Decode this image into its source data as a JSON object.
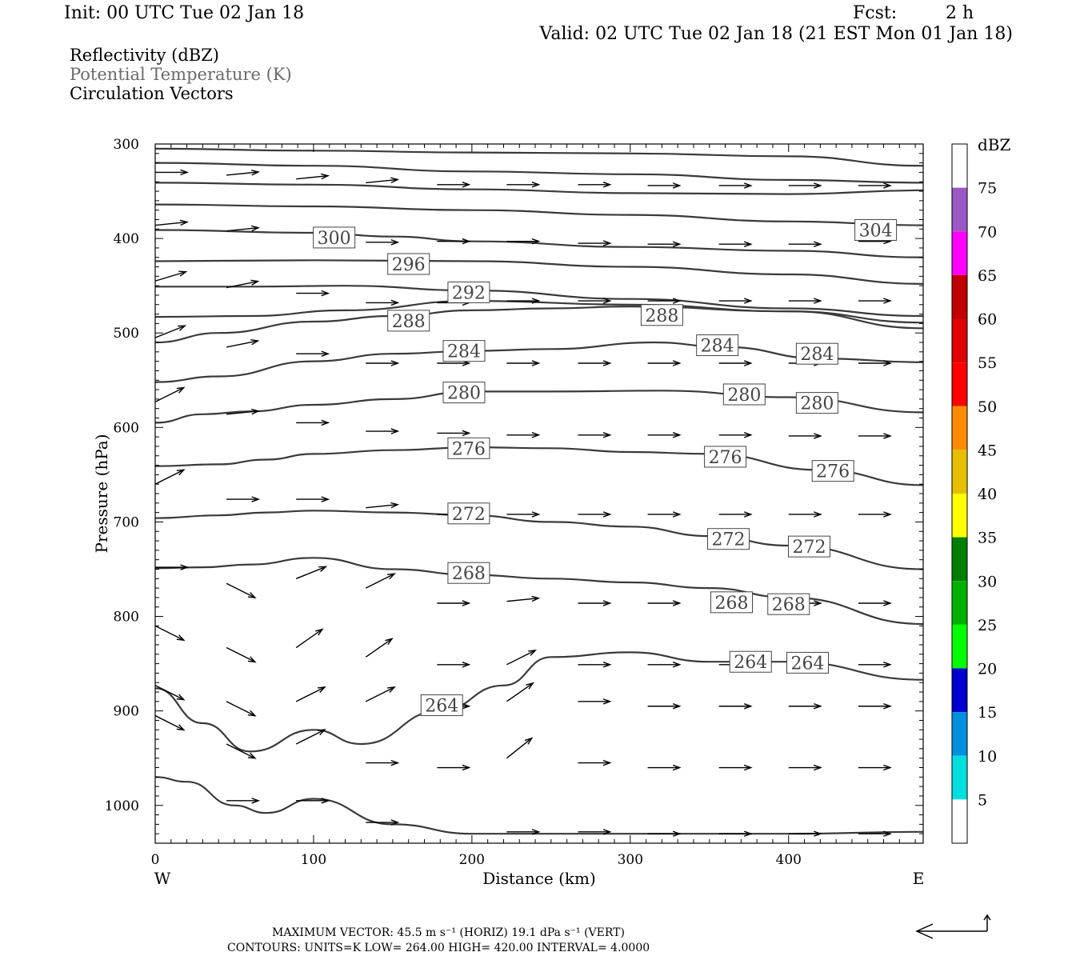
{
  "header": {
    "init": "Init: 00 UTC Tue 02 Jan 18",
    "fcst_label": "Fcst:",
    "fcst_value": "2 h",
    "valid": "Valid: 02 UTC Tue 02 Jan 18 (21 EST Mon 01 Jan 18)"
  },
  "legend": {
    "reflectivity": "Reflectivity (dBZ)",
    "theta": "Potential Temperature (K)",
    "vectors": "Circulation Vectors"
  },
  "colors": {
    "contour": "#3a3a3a",
    "theta_legend": "#6a6a6a",
    "vector": "#000000"
  },
  "chart_data": {
    "type": "line",
    "xlabel": "Distance (km)",
    "ylabel": "Pressure (hPa)",
    "xlim": [
      0,
      485
    ],
    "ylim": [
      1040,
      300
    ],
    "y_scale": "linear, inverted",
    "x_ticks": [
      "0",
      "100",
      "200",
      "300",
      "400"
    ],
    "y_ticks": [
      "300",
      "400",
      "500",
      "600",
      "700",
      "800",
      "900",
      "1000"
    ],
    "west_label": "W",
    "east_label": "E",
    "theta_contours": [
      {
        "level": "",
        "x": [
          0,
          100,
          200,
          300,
          400,
          485
        ],
        "y": [
          305,
          307,
          309,
          310,
          313,
          323
        ]
      },
      {
        "level": "",
        "x": [
          0,
          100,
          200,
          300,
          400,
          485
        ],
        "y": [
          320,
          323,
          329,
          332,
          338,
          341
        ]
      },
      {
        "level": "",
        "x": [
          0,
          100,
          200,
          300,
          400,
          485
        ],
        "y": [
          341,
          343,
          348,
          352,
          353,
          349
        ]
      },
      {
        "level": "",
        "x": [
          0,
          100,
          200,
          300,
          400,
          485
        ],
        "y": [
          364,
          366,
          370,
          375,
          382,
          386
        ]
      },
      {
        "level": "300",
        "x": [
          0,
          100,
          150,
          200,
          300,
          400,
          485
        ],
        "y": [
          391,
          394,
          398,
          403,
          409,
          413,
          420
        ]
      },
      {
        "level": "",
        "x": [
          0,
          100,
          200,
          300,
          400,
          485
        ],
        "y": [
          424,
          423,
          424,
          430,
          438,
          448
        ]
      },
      {
        "level": "296",
        "x": [
          0,
          60,
          120,
          200,
          300,
          400,
          485
        ],
        "y": [
          451,
          451,
          450,
          455,
          464,
          474,
          482
        ]
      },
      {
        "level": "292",
        "x": [
          0,
          60,
          120,
          200,
          300,
          400,
          485
        ],
        "y": [
          483,
          482,
          476,
          466,
          470,
          477,
          489
        ]
      },
      {
        "level": "288",
        "x": [
          0,
          40,
          100,
          150,
          200,
          250,
          300,
          400,
          485
        ],
        "y": [
          510,
          500,
          488,
          482,
          476,
          474,
          472,
          477,
          495
        ]
      },
      {
        "level": "284",
        "x": [
          0,
          40,
          100,
          150,
          200,
          250,
          315,
          360,
          420,
          485
        ],
        "y": [
          552,
          546,
          530,
          522,
          519,
          517,
          510,
          515,
          527,
          531
        ]
      },
      {
        "level": "280",
        "x": [
          0,
          30,
          60,
          100,
          150,
          200,
          250,
          320,
          400,
          485
        ],
        "y": [
          595,
          586,
          583,
          576,
          570,
          562,
          562,
          561,
          568,
          584
        ]
      },
      {
        "level": "276",
        "x": [
          0,
          40,
          70,
          100,
          150,
          200,
          250,
          300,
          350,
          420,
          485
        ],
        "y": [
          641,
          639,
          634,
          628,
          624,
          621,
          622,
          626,
          628,
          645,
          661
        ]
      },
      {
        "level": "272",
        "x": [
          0,
          40,
          70,
          100,
          150,
          200,
          250,
          300,
          350,
          400,
          485
        ],
        "y": [
          696,
          693,
          690,
          688,
          690,
          693,
          700,
          705,
          715,
          725,
          750
        ]
      },
      {
        "level": "268",
        "x": [
          0,
          30,
          60,
          100,
          150,
          200,
          250,
          300,
          350,
          400,
          485
        ],
        "y": [
          749,
          748,
          745,
          738,
          750,
          756,
          760,
          764,
          770,
          780,
          808
        ]
      },
      {
        "level": "264",
        "x": [
          0,
          30,
          60,
          100,
          130,
          180,
          220,
          250,
          300,
          350,
          400,
          485
        ],
        "y": [
          876,
          913,
          943,
          920,
          935,
          900,
          873,
          843,
          838,
          848,
          848,
          867
        ]
      },
      {
        "level": "",
        "x": [
          0,
          20,
          50,
          70,
          100,
          150,
          200,
          300,
          400,
          485
        ],
        "y": [
          970,
          975,
          1000,
          1008,
          993,
          1020,
          1030,
          1030,
          1030,
          1028
        ]
      }
    ],
    "contour_labels": [
      {
        "text": "304",
        "x": 455,
        "y": 391
      },
      {
        "text": "300",
        "x": 113,
        "y": 399
      },
      {
        "text": "296",
        "x": 160,
        "y": 427
      },
      {
        "text": "292",
        "x": 198,
        "y": 457
      },
      {
        "text": "288",
        "x": 160,
        "y": 487
      },
      {
        "text": "288",
        "x": 320,
        "y": 481
      },
      {
        "text": "284",
        "x": 195,
        "y": 519
      },
      {
        "text": "284",
        "x": 355,
        "y": 513
      },
      {
        "text": "284",
        "x": 418,
        "y": 522
      },
      {
        "text": "280",
        "x": 195,
        "y": 563
      },
      {
        "text": "280",
        "x": 372,
        "y": 565
      },
      {
        "text": "280",
        "x": 418,
        "y": 574
      },
      {
        "text": "276",
        "x": 198,
        "y": 622
      },
      {
        "text": "276",
        "x": 360,
        "y": 631
      },
      {
        "text": "276",
        "x": 428,
        "y": 646
      },
      {
        "text": "272",
        "x": 198,
        "y": 691
      },
      {
        "text": "272",
        "x": 362,
        "y": 718
      },
      {
        "text": "272",
        "x": 413,
        "y": 726
      },
      {
        "text": "268",
        "x": 198,
        "y": 754
      },
      {
        "text": "268",
        "x": 364,
        "y": 785
      },
      {
        "text": "268",
        "x": 400,
        "y": 787
      },
      {
        "text": "264",
        "x": 181,
        "y": 894
      },
      {
        "text": "264",
        "x": 376,
        "y": 848
      },
      {
        "text": "264",
        "x": 412,
        "y": 849
      }
    ],
    "vectors": [
      {
        "x": 0,
        "y": 330,
        "u": 1,
        "v": 0
      },
      {
        "x": 45,
        "y": 333,
        "u": 1,
        "v": 0.1
      },
      {
        "x": 89,
        "y": 337,
        "u": 1,
        "v": 0.1
      },
      {
        "x": 133,
        "y": 341,
        "u": 1,
        "v": 0.1
      },
      {
        "x": 178,
        "y": 343,
        "u": 1,
        "v": 0
      },
      {
        "x": 222,
        "y": 343,
        "u": 1,
        "v": 0
      },
      {
        "x": 267,
        "y": 343,
        "u": 1,
        "v": 0
      },
      {
        "x": 311,
        "y": 344,
        "u": 1,
        "v": 0
      },
      {
        "x": 356,
        "y": 344,
        "u": 1,
        "v": 0
      },
      {
        "x": 400,
        "y": 344,
        "u": 1,
        "v": 0
      },
      {
        "x": 444,
        "y": 344,
        "u": 1,
        "v": 0
      },
      {
        "x": 0,
        "y": 386,
        "u": 1,
        "v": 0.1
      },
      {
        "x": 45,
        "y": 392,
        "u": 1,
        "v": 0.1
      },
      {
        "x": 133,
        "y": 404,
        "u": 1,
        "v": 0
      },
      {
        "x": 178,
        "y": 403,
        "u": 1,
        "v": 0
      },
      {
        "x": 222,
        "y": 403,
        "u": 1,
        "v": 0
      },
      {
        "x": 267,
        "y": 405,
        "u": 1,
        "v": 0
      },
      {
        "x": 311,
        "y": 406,
        "u": 1,
        "v": 0
      },
      {
        "x": 356,
        "y": 406,
        "u": 1,
        "v": 0
      },
      {
        "x": 400,
        "y": 406,
        "u": 1,
        "v": 0
      },
      {
        "x": 444,
        "y": 403,
        "u": 1,
        "v": 0
      },
      {
        "x": 0,
        "y": 445,
        "u": 1,
        "v": 0.3
      },
      {
        "x": 45,
        "y": 452,
        "u": 1,
        "v": 0.2
      },
      {
        "x": 89,
        "y": 458,
        "u": 1,
        "v": 0
      },
      {
        "x": 133,
        "y": 468,
        "u": 1,
        "v": 0
      },
      {
        "x": 178,
        "y": 468,
        "u": 1,
        "v": 0
      },
      {
        "x": 222,
        "y": 466,
        "u": 1,
        "v": 0
      },
      {
        "x": 267,
        "y": 466,
        "u": 1,
        "v": 0
      },
      {
        "x": 311,
        "y": 466,
        "u": 1,
        "v": 0
      },
      {
        "x": 356,
        "y": 466,
        "u": 1,
        "v": 0
      },
      {
        "x": 400,
        "y": 466,
        "u": 1,
        "v": 0
      },
      {
        "x": 444,
        "y": 466,
        "u": 1,
        "v": 0
      },
      {
        "x": 0,
        "y": 505,
        "u": 1,
        "v": 0.4
      },
      {
        "x": 45,
        "y": 515,
        "u": 1,
        "v": 0.2
      },
      {
        "x": 89,
        "y": 522,
        "u": 1,
        "v": 0
      },
      {
        "x": 133,
        "y": 532,
        "u": 1,
        "v": 0
      },
      {
        "x": 178,
        "y": 532,
        "u": 1,
        "v": 0
      },
      {
        "x": 222,
        "y": 532,
        "u": 1,
        "v": 0
      },
      {
        "x": 267,
        "y": 532,
        "u": 1,
        "v": 0
      },
      {
        "x": 311,
        "y": 532,
        "u": 1,
        "v": 0
      },
      {
        "x": 356,
        "y": 532,
        "u": 1,
        "v": 0
      },
      {
        "x": 400,
        "y": 532,
        "u": 1,
        "v": 0
      },
      {
        "x": 444,
        "y": 532,
        "u": 1,
        "v": 0
      },
      {
        "x": 0,
        "y": 573,
        "u": 1,
        "v": 0.5
      },
      {
        "x": 45,
        "y": 586,
        "u": 1,
        "v": 0.1
      },
      {
        "x": 89,
        "y": 595,
        "u": 1,
        "v": 0
      },
      {
        "x": 133,
        "y": 604,
        "u": 1,
        "v": 0
      },
      {
        "x": 178,
        "y": 606,
        "u": 1,
        "v": 0
      },
      {
        "x": 222,
        "y": 608,
        "u": 1,
        "v": 0
      },
      {
        "x": 267,
        "y": 608,
        "u": 1,
        "v": 0
      },
      {
        "x": 311,
        "y": 608,
        "u": 1,
        "v": 0
      },
      {
        "x": 356,
        "y": 608,
        "u": 1,
        "v": 0
      },
      {
        "x": 400,
        "y": 609,
        "u": 1,
        "v": 0
      },
      {
        "x": 444,
        "y": 609,
        "u": 1,
        "v": 0
      },
      {
        "x": 0,
        "y": 660,
        "u": 1,
        "v": 0.5
      },
      {
        "x": 45,
        "y": 676,
        "u": 1,
        "v": 0
      },
      {
        "x": 89,
        "y": 676,
        "u": 1,
        "v": 0
      },
      {
        "x": 133,
        "y": 685,
        "u": 1,
        "v": 0.1
      },
      {
        "x": 178,
        "y": 692,
        "u": 1,
        "v": 0
      },
      {
        "x": 222,
        "y": 692,
        "u": 1,
        "v": 0
      },
      {
        "x": 267,
        "y": 692,
        "u": 1,
        "v": 0
      },
      {
        "x": 311,
        "y": 692,
        "u": 1,
        "v": 0
      },
      {
        "x": 356,
        "y": 692,
        "u": 1,
        "v": 0
      },
      {
        "x": 400,
        "y": 692,
        "u": 1,
        "v": 0
      },
      {
        "x": 444,
        "y": 692,
        "u": 1,
        "v": 0
      },
      {
        "x": 0,
        "y": 748,
        "u": 1,
        "v": 0
      },
      {
        "x": 45,
        "y": 765,
        "u": 1,
        "v": -0.5
      },
      {
        "x": 89,
        "y": 760,
        "u": 1,
        "v": 0.4
      },
      {
        "x": 133,
        "y": 770,
        "u": 1,
        "v": 0.5
      },
      {
        "x": 178,
        "y": 786,
        "u": 1,
        "v": 0
      },
      {
        "x": 222,
        "y": 784,
        "u": 1,
        "v": 0.1
      },
      {
        "x": 267,
        "y": 786,
        "u": 1,
        "v": 0
      },
      {
        "x": 311,
        "y": 786,
        "u": 1,
        "v": 0
      },
      {
        "x": 356,
        "y": 786,
        "u": 1,
        "v": 0
      },
      {
        "x": 400,
        "y": 786,
        "u": 1,
        "v": 0
      },
      {
        "x": 444,
        "y": 786,
        "u": 1,
        "v": 0
      },
      {
        "x": 0,
        "y": 810,
        "u": 1,
        "v": -0.5
      },
      {
        "x": 45,
        "y": 833,
        "u": 1,
        "v": -0.5
      },
      {
        "x": 89,
        "y": 833,
        "u": 1,
        "v": 0.7
      },
      {
        "x": 133,
        "y": 843,
        "u": 1,
        "v": 0.7
      },
      {
        "x": 178,
        "y": 851,
        "u": 1,
        "v": 0
      },
      {
        "x": 222,
        "y": 851,
        "u": 1,
        "v": 0.5
      },
      {
        "x": 267,
        "y": 851,
        "u": 1,
        "v": 0
      },
      {
        "x": 311,
        "y": 851,
        "u": 1,
        "v": 0
      },
      {
        "x": 356,
        "y": 851,
        "u": 1,
        "v": 0
      },
      {
        "x": 400,
        "y": 851,
        "u": 1,
        "v": 0
      },
      {
        "x": 444,
        "y": 851,
        "u": 1,
        "v": 0
      },
      {
        "x": 0,
        "y": 873,
        "u": 1,
        "v": -0.5
      },
      {
        "x": 45,
        "y": 890,
        "u": 1,
        "v": -0.5
      },
      {
        "x": 89,
        "y": 890,
        "u": 1,
        "v": 0.5
      },
      {
        "x": 133,
        "y": 890,
        "u": 1,
        "v": 0.5
      },
      {
        "x": 178,
        "y": 895,
        "u": 1,
        "v": 0
      },
      {
        "x": 222,
        "y": 890,
        "u": 1,
        "v": 0.7
      },
      {
        "x": 267,
        "y": 890,
        "u": 1,
        "v": 0
      },
      {
        "x": 311,
        "y": 895,
        "u": 1,
        "v": 0
      },
      {
        "x": 356,
        "y": 895,
        "u": 1,
        "v": 0
      },
      {
        "x": 400,
        "y": 895,
        "u": 1,
        "v": 0
      },
      {
        "x": 444,
        "y": 895,
        "u": 1,
        "v": 0
      },
      {
        "x": 0,
        "y": 905,
        "u": 1,
        "v": -0.5
      },
      {
        "x": 45,
        "y": 935,
        "u": 1,
        "v": -0.5
      },
      {
        "x": 89,
        "y": 935,
        "u": 1,
        "v": 0.5
      },
      {
        "x": 133,
        "y": 955,
        "u": 1,
        "v": 0
      },
      {
        "x": 178,
        "y": 960,
        "u": 1,
        "v": 0
      },
      {
        "x": 222,
        "y": 950,
        "u": 1,
        "v": 0.8
      },
      {
        "x": 267,
        "y": 955,
        "u": 1,
        "v": 0
      },
      {
        "x": 311,
        "y": 960,
        "u": 1,
        "v": 0
      },
      {
        "x": 356,
        "y": 960,
        "u": 1,
        "v": 0
      },
      {
        "x": 400,
        "y": 960,
        "u": 1,
        "v": 0
      },
      {
        "x": 444,
        "y": 960,
        "u": 1,
        "v": 0
      },
      {
        "x": 45,
        "y": 995,
        "u": 1,
        "v": 0
      },
      {
        "x": 89,
        "y": 995,
        "u": 1,
        "v": 0
      },
      {
        "x": 133,
        "y": 1018,
        "u": 1,
        "v": 0
      },
      {
        "x": 222,
        "y": 1028,
        "u": 1,
        "v": 0
      },
      {
        "x": 267,
        "y": 1028,
        "u": 1,
        "v": 0
      },
      {
        "x": 311,
        "y": 1030,
        "u": 1,
        "v": 0
      },
      {
        "x": 356,
        "y": 1030,
        "u": 1,
        "v": 0
      },
      {
        "x": 400,
        "y": 1030,
        "u": 1,
        "v": 0
      },
      {
        "x": 444,
        "y": 1030,
        "u": 1,
        "v": 0
      }
    ]
  },
  "colorbar": {
    "units": "dBZ",
    "labels": [
      "75",
      "70",
      "65",
      "60",
      "55",
      "50",
      "45",
      "40",
      "35",
      "30",
      "25",
      "20",
      "15",
      "10",
      "5"
    ],
    "colors": [
      "#ffffff",
      "#9b59c5",
      "#ff00ff",
      "#c00000",
      "#e00000",
      "#ff0000",
      "#ff8c00",
      "#e6c000",
      "#ffff00",
      "#008000",
      "#00b000",
      "#00ff00",
      "#0000d0",
      "#0090e0",
      "#00e0e0",
      "#ffffff"
    ]
  },
  "footer": {
    "max_vector": "MAXIMUM VECTOR:  45.5 m s⁻¹ (HORIZ)          19.1 dPa s⁻¹ (VERT)",
    "contours": "CONTOURS:  UNITS=K  LOW=   264.00          HIGH=   420.00          INTERVAL=     4.0000"
  }
}
